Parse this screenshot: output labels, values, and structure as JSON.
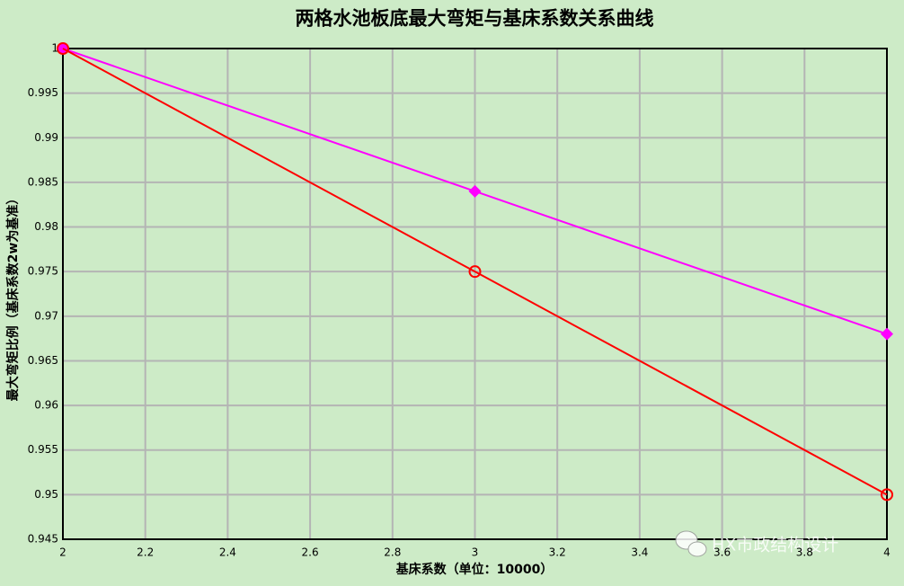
{
  "chart_data": {
    "type": "line",
    "title": "两格水池板底最大弯矩与基床系数关系曲线",
    "x_label": "基床系数（单位：10000）",
    "y_label": "最大弯矩比例（基床系数2w为基准）",
    "watermark": "HX市政结构设计",
    "x": [
      2,
      3,
      4
    ],
    "series": [
      {
        "color": "#ff00ff",
        "marker": "diamond",
        "values": [
          1,
          0.984,
          0.968
        ]
      },
      {
        "color": "#ff0000",
        "marker": "circle",
        "values": [
          1,
          0.975,
          0.95
        ]
      }
    ],
    "xlim": [
      2,
      4
    ],
    "xticks": [
      2,
      2.2,
      2.4,
      2.6,
      2.8,
      3,
      3.2,
      3.4,
      3.6,
      3.8,
      4
    ],
    "ylim": [
      0.945,
      1
    ],
    "yticks": [
      0.945,
      0.95,
      0.955,
      0.96,
      0.965,
      0.97,
      0.975,
      0.98,
      0.985,
      0.99,
      0.995,
      1
    ],
    "grid": true
  }
}
